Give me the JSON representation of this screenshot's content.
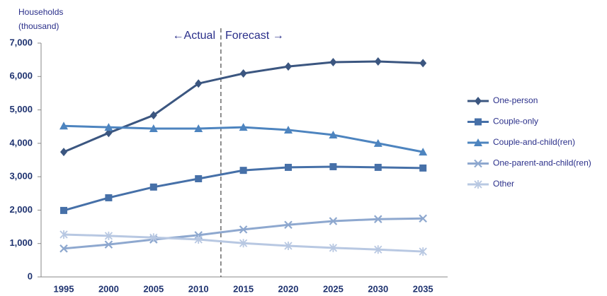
{
  "chart_data": {
    "type": "line",
    "ylabel": [
      "Households",
      "(thousand)"
    ],
    "annotations": [
      "←Actual",
      "Forecast →"
    ],
    "categories": [
      "1995",
      "2000",
      "2005",
      "2010",
      "2015",
      "2020",
      "2025",
      "2030",
      "2035"
    ],
    "series": [
      {
        "name": "One-person",
        "color": "#3b5680",
        "marker": "diamond",
        "values": [
          3740,
          4310,
          4840,
          5790,
          6090,
          6300,
          6430,
          6450,
          6400
        ]
      },
      {
        "name": "Couple-only",
        "color": "#4670a8",
        "marker": "square",
        "values": [
          1990,
          2370,
          2690,
          2940,
          3190,
          3280,
          3300,
          3280,
          3260
        ]
      },
      {
        "name": "Couple-and-child(ren)",
        "color": "#4d84bf",
        "marker": "triangle",
        "values": [
          4520,
          4480,
          4440,
          4440,
          4480,
          4400,
          4250,
          4000,
          3740
        ]
      },
      {
        "name": "One-parent-and-child(ren)",
        "color": "#8ea8cf",
        "marker": "x",
        "values": [
          850,
          970,
          1120,
          1250,
          1420,
          1560,
          1670,
          1730,
          1750
        ]
      },
      {
        "name": "Other",
        "color": "#b8c8e2",
        "marker": "star",
        "values": [
          1270,
          1230,
          1180,
          1120,
          1010,
          930,
          870,
          820,
          760
        ]
      }
    ],
    "ylim": [
      0,
      7000
    ],
    "yticks": [
      0,
      {
        "value": 1000,
        "label": "1,000"
      },
      {
        "value": 2000,
        "label": "2,000"
      },
      {
        "value": 3000,
        "label": "3,000"
      },
      {
        "value": 4000,
        "label": "4,000"
      },
      {
        "value": 5000,
        "label": "5,000"
      },
      {
        "value": 6000,
        "label": "6,000"
      },
      {
        "value": 7000,
        "label": "7,000"
      }
    ],
    "grid": false,
    "legend": "right"
  }
}
